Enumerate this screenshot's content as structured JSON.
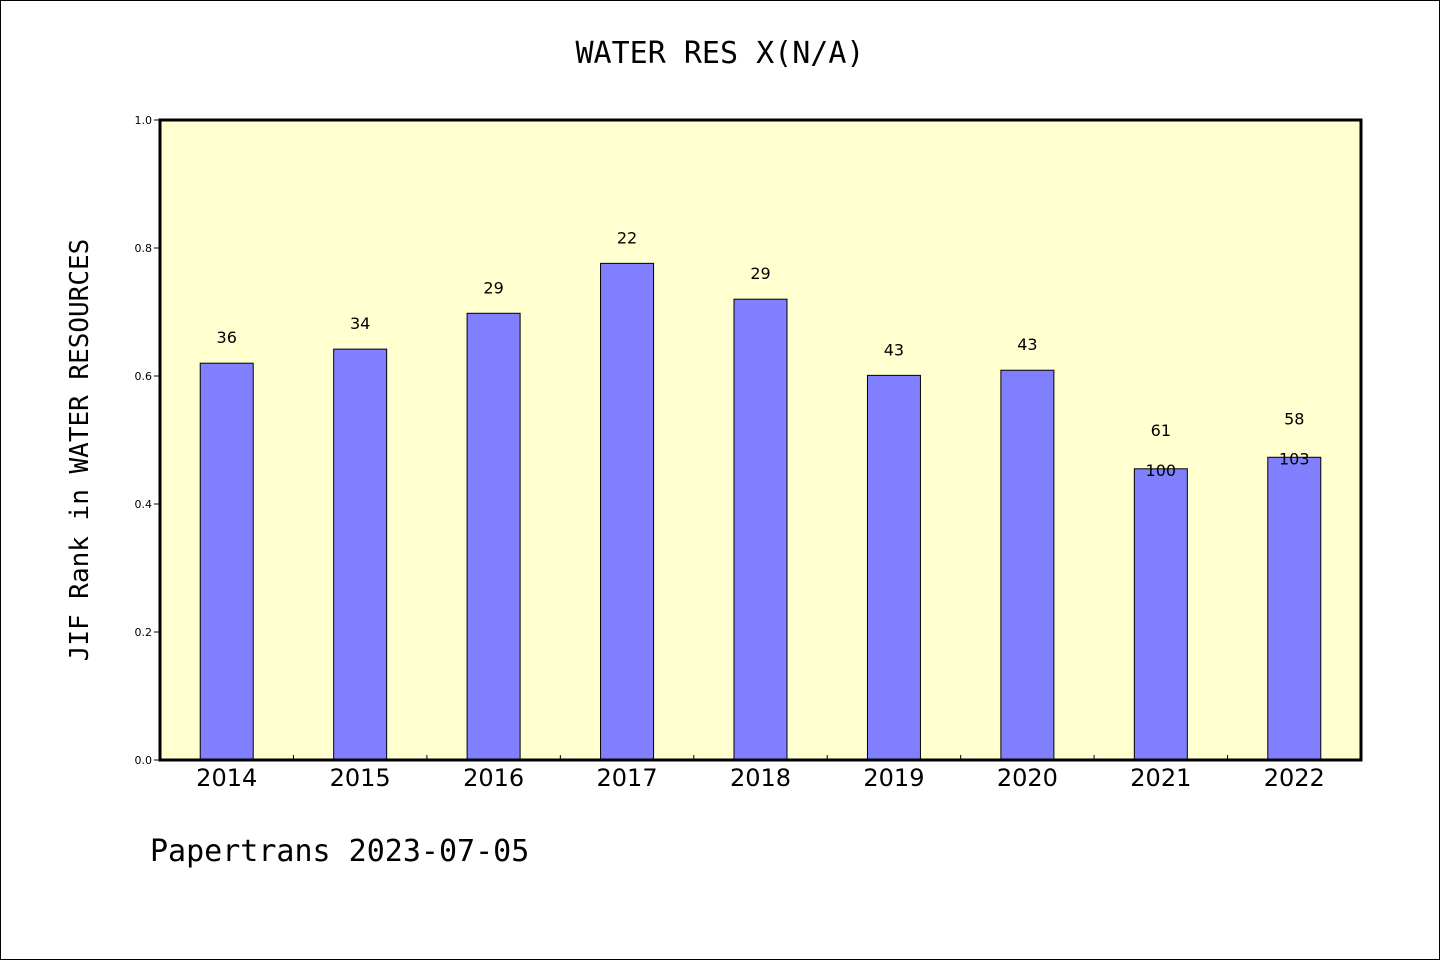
{
  "chart_data": {
    "type": "bar",
    "title": "WATER RES X(N/A)",
    "ylabel": "JIF Rank in WATER RESOURCES",
    "xlabel": "",
    "ylim": [
      0,
      1.0
    ],
    "yticks": [
      "0.0",
      "0.2",
      "0.4",
      "0.6",
      "0.8",
      "1.0"
    ],
    "categories": [
      "2014",
      "2015",
      "2016",
      "2017",
      "2018",
      "2019",
      "2020",
      "2021",
      "2022"
    ],
    "values": [
      0.62,
      0.642,
      0.698,
      0.776,
      0.72,
      0.601,
      0.609,
      0.455,
      0.473
    ],
    "bar_labels": [
      [
        "36"
      ],
      [
        "34"
      ],
      [
        "29"
      ],
      [
        "22"
      ],
      [
        "29"
      ],
      [
        "43"
      ],
      [
        "43"
      ],
      [
        "61",
        "100"
      ],
      [
        "58",
        "103"
      ]
    ],
    "grid": false,
    "colors": {
      "bar_fill": "#8080ff",
      "plot_background": "#ffffd0",
      "axis": "#000000"
    }
  },
  "footer": {
    "text": "Papertrans 2023-07-05"
  }
}
